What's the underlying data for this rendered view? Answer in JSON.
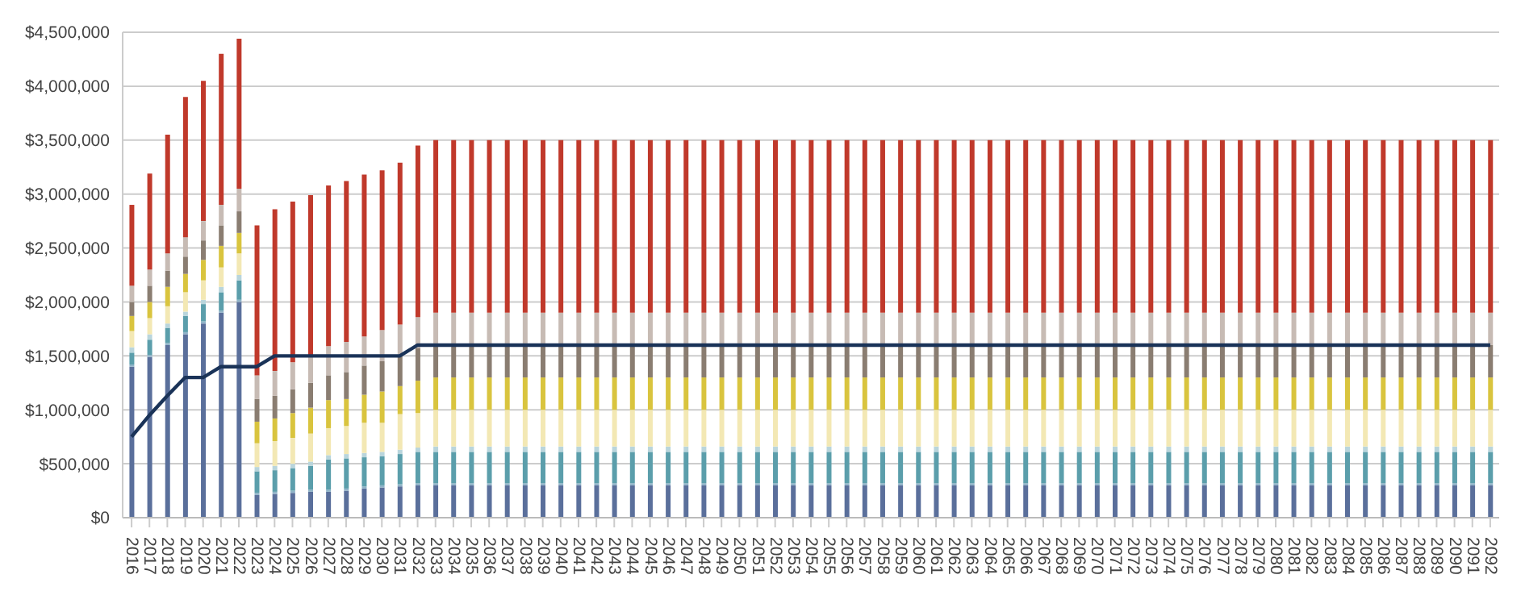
{
  "chart_data": {
    "type": "bar",
    "stacked": true,
    "grid": "y",
    "legend": false,
    "categories": [
      "2016",
      "2017",
      "2018",
      "2019",
      "2020",
      "2021",
      "2022",
      "2023",
      "2024",
      "2025",
      "2026",
      "2027",
      "2028",
      "2029",
      "2030",
      "2031",
      "2032",
      "2033",
      "2034",
      "2035",
      "2036",
      "2037",
      "2038",
      "2039",
      "2040",
      "2041",
      "2042",
      "2043",
      "2044",
      "2045",
      "2046",
      "2047",
      "2048",
      "2049",
      "2050",
      "2051",
      "2052",
      "2053",
      "2054",
      "2055",
      "2056",
      "2057",
      "2058",
      "2059",
      "2060",
      "2061",
      "2062",
      "2063",
      "2064",
      "2065",
      "2066",
      "2067",
      "2068",
      "2069",
      "2070",
      "2071",
      "2072",
      "2073",
      "2074",
      "2075",
      "2076",
      "2077",
      "2078",
      "2079",
      "2080",
      "2081",
      "2082",
      "2083",
      "2084",
      "2085",
      "2086",
      "2087",
      "2088",
      "2089",
      "2090",
      "2091",
      "2092"
    ],
    "ylim": [
      0,
      4500000
    ],
    "yticks": [
      {
        "value": 0,
        "label": "$0"
      },
      {
        "value": 500000,
        "label": "$500,000"
      },
      {
        "value": 1000000,
        "label": "$1,000,000"
      },
      {
        "value": 1500000,
        "label": "$1,500,000"
      },
      {
        "value": 2000000,
        "label": "$2,000,000"
      },
      {
        "value": 2500000,
        "label": "$2,500,000"
      },
      {
        "value": 3000000,
        "label": "$3,000,000"
      },
      {
        "value": 3500000,
        "label": "$3,500,000"
      },
      {
        "value": 4000000,
        "label": "$4,000,000"
      },
      {
        "value": 4500000,
        "label": "$4,500,000"
      }
    ],
    "series": [
      {
        "color": "#5a6f9b",
        "values": [
          1400000,
          1490000,
          1600000,
          1700000,
          1800000,
          1900000,
          2000000,
          210000,
          220000,
          230000,
          240000,
          240000,
          250000,
          270000,
          280000,
          290000,
          300000,
          300000,
          300000,
          300000,
          300000,
          300000,
          300000,
          300000,
          300000,
          300000,
          300000,
          300000,
          300000,
          300000,
          300000,
          300000,
          300000,
          300000,
          300000,
          300000,
          300000,
          300000,
          300000,
          300000,
          300000,
          300000,
          300000,
          300000,
          300000,
          300000,
          300000,
          300000,
          300000,
          300000,
          300000,
          300000,
          300000,
          300000,
          300000,
          300000,
          300000,
          300000,
          300000,
          300000,
          300000,
          300000,
          300000,
          300000,
          300000,
          300000,
          300000,
          300000,
          300000,
          300000,
          300000,
          300000,
          300000,
          300000,
          300000,
          300000,
          300000
        ]
      },
      {
        "color": "#8fb3c8",
        "values": [
          20000,
          20000,
          20000,
          20000,
          20000,
          20000,
          20000,
          20000,
          20000,
          20000,
          20000,
          20000,
          20000,
          20000,
          20000,
          20000,
          20000,
          20000,
          20000,
          20000,
          20000,
          20000,
          20000,
          20000,
          20000,
          20000,
          20000,
          20000,
          20000,
          20000,
          20000,
          20000,
          20000,
          20000,
          20000,
          20000,
          20000,
          20000,
          20000,
          20000,
          20000,
          20000,
          20000,
          20000,
          20000,
          20000,
          20000,
          20000,
          20000,
          20000,
          20000,
          20000,
          20000,
          20000,
          20000,
          20000,
          20000,
          20000,
          20000,
          20000,
          20000,
          20000,
          20000,
          20000,
          20000,
          20000,
          20000,
          20000,
          20000,
          20000,
          20000,
          20000,
          20000,
          20000,
          20000,
          20000,
          20000
        ]
      },
      {
        "color": "#5b9eab",
        "values": [
          110000,
          140000,
          140000,
          150000,
          160000,
          170000,
          180000,
          200000,
          200000,
          210000,
          220000,
          280000,
          280000,
          270000,
          270000,
          280000,
          290000,
          290000,
          290000,
          290000,
          290000,
          290000,
          290000,
          290000,
          290000,
          290000,
          290000,
          290000,
          290000,
          290000,
          290000,
          290000,
          290000,
          290000,
          290000,
          290000,
          290000,
          290000,
          290000,
          290000,
          290000,
          290000,
          290000,
          290000,
          290000,
          290000,
          290000,
          290000,
          290000,
          290000,
          290000,
          290000,
          290000,
          290000,
          290000,
          290000,
          290000,
          290000,
          290000,
          290000,
          290000,
          290000,
          290000,
          290000,
          290000,
          290000,
          290000,
          290000,
          290000,
          290000,
          290000,
          290000,
          290000,
          290000,
          290000,
          290000,
          290000
        ]
      },
      {
        "color": "#b9d5dc",
        "values": [
          50000,
          50000,
          40000,
          40000,
          40000,
          50000,
          50000,
          40000,
          40000,
          40000,
          40000,
          40000,
          40000,
          40000,
          40000,
          40000,
          40000,
          50000,
          50000,
          50000,
          50000,
          50000,
          50000,
          50000,
          50000,
          50000,
          50000,
          50000,
          50000,
          50000,
          50000,
          50000,
          50000,
          50000,
          50000,
          50000,
          50000,
          50000,
          50000,
          50000,
          50000,
          50000,
          50000,
          50000,
          50000,
          50000,
          50000,
          50000,
          50000,
          50000,
          50000,
          50000,
          50000,
          50000,
          50000,
          50000,
          50000,
          50000,
          50000,
          50000,
          50000,
          50000,
          50000,
          50000,
          50000,
          50000,
          50000,
          50000,
          50000,
          50000,
          50000,
          50000,
          50000,
          50000,
          50000,
          50000,
          50000
        ]
      },
      {
        "color": "#f3e8b4",
        "values": [
          150000,
          150000,
          160000,
          180000,
          180000,
          180000,
          200000,
          220000,
          230000,
          240000,
          260000,
          250000,
          260000,
          280000,
          270000,
          330000,
          320000,
          340000,
          340000,
          340000,
          340000,
          340000,
          340000,
          340000,
          340000,
          340000,
          340000,
          340000,
          340000,
          340000,
          340000,
          340000,
          340000,
          340000,
          340000,
          340000,
          340000,
          340000,
          340000,
          340000,
          340000,
          340000,
          340000,
          340000,
          340000,
          340000,
          340000,
          340000,
          340000,
          340000,
          340000,
          340000,
          340000,
          340000,
          340000,
          340000,
          340000,
          340000,
          340000,
          340000,
          340000,
          340000,
          340000,
          340000,
          340000,
          340000,
          340000,
          340000,
          340000,
          340000,
          340000,
          340000,
          340000,
          340000,
          340000,
          340000,
          340000
        ]
      },
      {
        "color": "#d9c43e",
        "values": [
          140000,
          150000,
          180000,
          170000,
          190000,
          200000,
          190000,
          200000,
          210000,
          230000,
          240000,
          260000,
          250000,
          260000,
          290000,
          260000,
          300000,
          300000,
          300000,
          300000,
          300000,
          300000,
          300000,
          300000,
          300000,
          300000,
          300000,
          300000,
          300000,
          300000,
          300000,
          300000,
          300000,
          300000,
          300000,
          300000,
          300000,
          300000,
          300000,
          300000,
          300000,
          300000,
          300000,
          300000,
          300000,
          300000,
          300000,
          300000,
          300000,
          300000,
          300000,
          300000,
          300000,
          300000,
          300000,
          300000,
          300000,
          300000,
          300000,
          300000,
          300000,
          300000,
          300000,
          300000,
          300000,
          300000,
          300000,
          300000,
          300000,
          300000,
          300000,
          300000,
          300000,
          300000,
          300000,
          300000,
          300000
        ]
      },
      {
        "color": "#8a7d71",
        "values": [
          130000,
          150000,
          150000,
          160000,
          180000,
          190000,
          200000,
          210000,
          210000,
          220000,
          230000,
          230000,
          250000,
          270000,
          280000,
          280000,
          300000,
          300000,
          300000,
          300000,
          300000,
          300000,
          300000,
          300000,
          300000,
          300000,
          300000,
          300000,
          300000,
          300000,
          300000,
          300000,
          300000,
          300000,
          300000,
          300000,
          300000,
          300000,
          300000,
          300000,
          300000,
          300000,
          300000,
          300000,
          300000,
          300000,
          300000,
          300000,
          300000,
          300000,
          300000,
          300000,
          300000,
          300000,
          300000,
          300000,
          300000,
          300000,
          300000,
          300000,
          300000,
          300000,
          300000,
          300000,
          300000,
          300000,
          300000,
          300000,
          300000,
          300000,
          300000,
          300000,
          300000,
          300000,
          300000,
          300000,
          300000
        ]
      },
      {
        "color": "#c7bbb4",
        "values": [
          150000,
          150000,
          160000,
          180000,
          180000,
          190000,
          210000,
          220000,
          230000,
          250000,
          240000,
          270000,
          280000,
          270000,
          290000,
          290000,
          290000,
          300000,
          300000,
          300000,
          300000,
          300000,
          300000,
          300000,
          300000,
          300000,
          300000,
          300000,
          300000,
          300000,
          300000,
          300000,
          300000,
          300000,
          300000,
          300000,
          300000,
          300000,
          300000,
          300000,
          300000,
          300000,
          300000,
          300000,
          300000,
          300000,
          300000,
          300000,
          300000,
          300000,
          300000,
          300000,
          300000,
          300000,
          300000,
          300000,
          300000,
          300000,
          300000,
          300000,
          300000,
          300000,
          300000,
          300000,
          300000,
          300000,
          300000,
          300000,
          300000,
          300000,
          300000,
          300000,
          300000,
          300000,
          300000,
          300000,
          300000
        ]
      },
      {
        "color": "#c0392b",
        "values": [
          750000,
          890000,
          1100000,
          1300000,
          1300000,
          1400000,
          1390000,
          1390000,
          1500000,
          1490000,
          1500000,
          1490000,
          1490000,
          1500000,
          1480000,
          1500000,
          1590000,
          1600000,
          1600000,
          1600000,
          1600000,
          1600000,
          1600000,
          1600000,
          1600000,
          1600000,
          1600000,
          1600000,
          1600000,
          1600000,
          1600000,
          1600000,
          1600000,
          1600000,
          1600000,
          1600000,
          1600000,
          1600000,
          1600000,
          1600000,
          1600000,
          1600000,
          1600000,
          1600000,
          1600000,
          1600000,
          1600000,
          1600000,
          1600000,
          1600000,
          1600000,
          1600000,
          1600000,
          1600000,
          1600000,
          1600000,
          1600000,
          1600000,
          1600000,
          1600000,
          1600000,
          1600000,
          1600000,
          1600000,
          1600000,
          1600000,
          1600000,
          1600000,
          1600000,
          1600000,
          1600000,
          1600000,
          1600000,
          1600000,
          1600000,
          1600000,
          1600000
        ]
      },
      {
        "type": "line",
        "color": "#1a3358",
        "values": [
          750000,
          950000,
          1130000,
          1300000,
          1300000,
          1400000,
          1400000,
          1400000,
          1500000,
          1500000,
          1500000,
          1500000,
          1500000,
          1500000,
          1500000,
          1500000,
          1600000,
          1600000,
          1600000,
          1600000,
          1600000,
          1600000,
          1600000,
          1600000,
          1600000,
          1600000,
          1600000,
          1600000,
          1600000,
          1600000,
          1600000,
          1600000,
          1600000,
          1600000,
          1600000,
          1600000,
          1600000,
          1600000,
          1600000,
          1600000,
          1600000,
          1600000,
          1600000,
          1600000,
          1600000,
          1600000,
          1600000,
          1600000,
          1600000,
          1600000,
          1600000,
          1600000,
          1600000,
          1600000,
          1600000,
          1600000,
          1600000,
          1600000,
          1600000,
          1600000,
          1600000,
          1600000,
          1600000,
          1600000,
          1600000,
          1600000,
          1600000,
          1600000,
          1600000,
          1600000,
          1600000,
          1600000,
          1600000,
          1600000,
          1600000,
          1600000,
          1600000
        ]
      }
    ]
  }
}
